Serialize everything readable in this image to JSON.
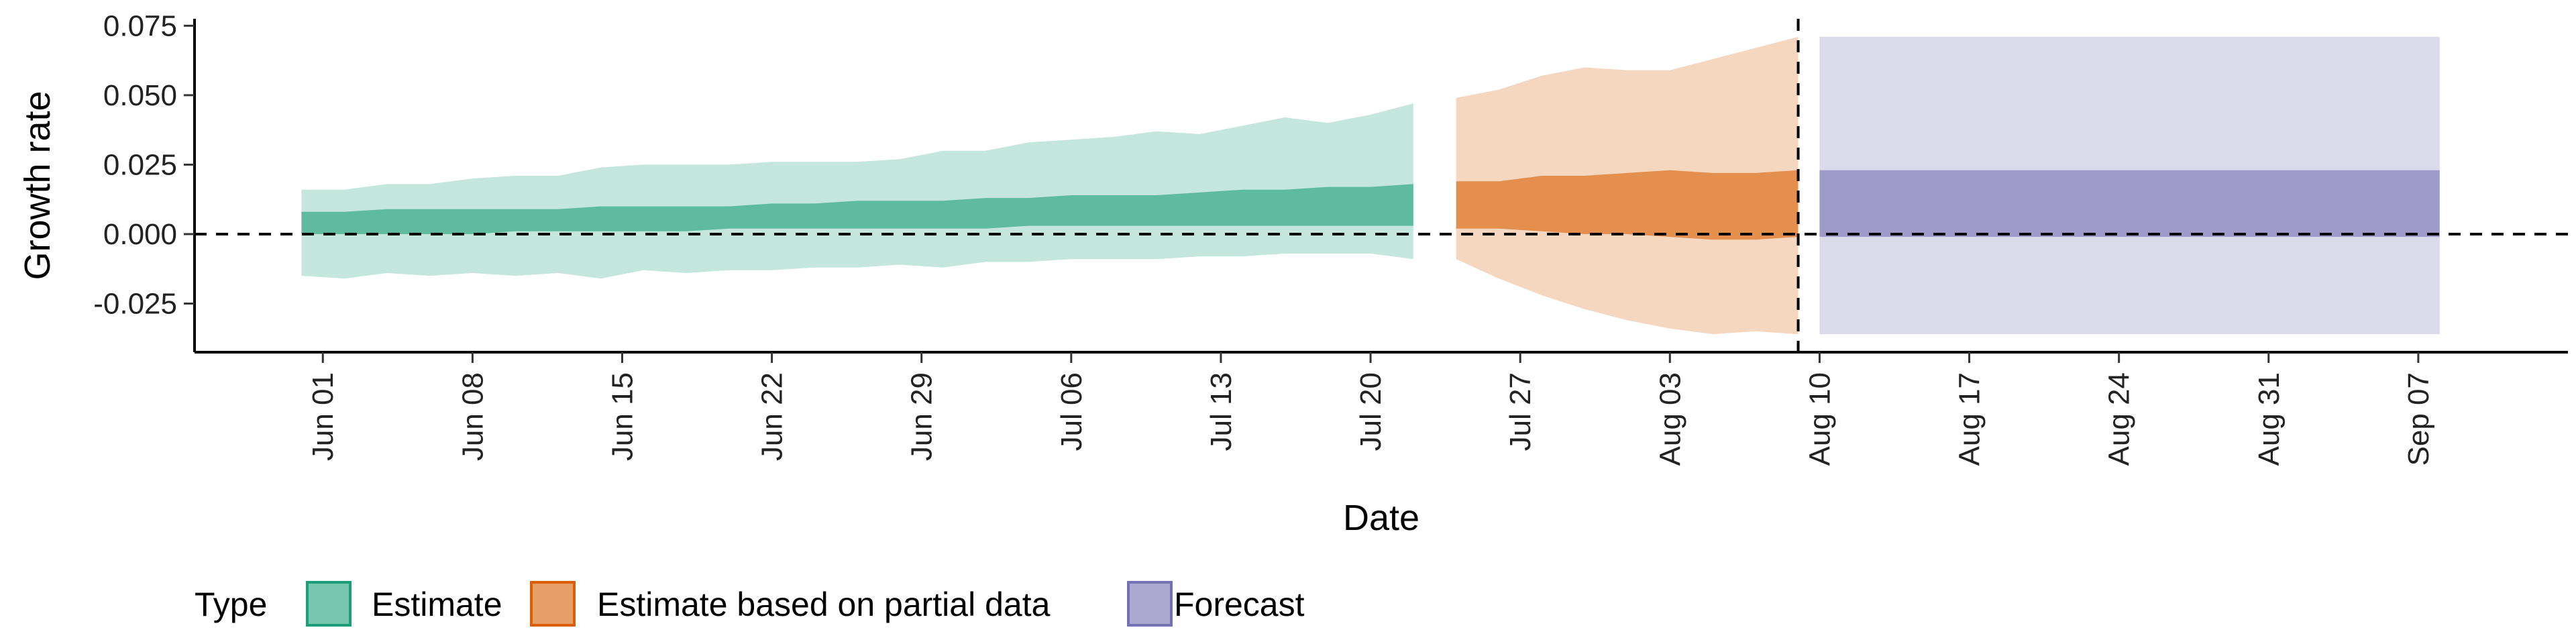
{
  "chart_data": {
    "type": "area",
    "xlabel": "Date",
    "ylabel": "Growth rate",
    "x_axis_type": "date",
    "xlim": [
      "2021-05-26",
      "2021-09-14"
    ],
    "ylim": [
      -0.0425,
      0.0775
    ],
    "x_ticks": [
      {
        "date": "2021-06-01",
        "label": "Jun 01"
      },
      {
        "date": "2021-06-08",
        "label": "Jun 08"
      },
      {
        "date": "2021-06-15",
        "label": "Jun 15"
      },
      {
        "date": "2021-06-22",
        "label": "Jun 22"
      },
      {
        "date": "2021-06-29",
        "label": "Jun 29"
      },
      {
        "date": "2021-07-06",
        "label": "Jul 06"
      },
      {
        "date": "2021-07-13",
        "label": "Jul 13"
      },
      {
        "date": "2021-07-20",
        "label": "Jul 20"
      },
      {
        "date": "2021-07-27",
        "label": "Jul 27"
      },
      {
        "date": "2021-08-03",
        "label": "Aug 03"
      },
      {
        "date": "2021-08-10",
        "label": "Aug 10"
      },
      {
        "date": "2021-08-17",
        "label": "Aug 17"
      },
      {
        "date": "2021-08-24",
        "label": "Aug 24"
      },
      {
        "date": "2021-08-31",
        "label": "Aug 31"
      },
      {
        "date": "2021-09-07",
        "label": "Sep 07"
      }
    ],
    "y_ticks": [
      {
        "value": 0.075,
        "label": "0.075"
      },
      {
        "value": 0.05,
        "label": "0.050"
      },
      {
        "value": 0.025,
        "label": "0.025"
      },
      {
        "value": 0.0,
        "label": "0.000"
      },
      {
        "value": -0.025,
        "label": "-0.025"
      }
    ],
    "reference_lines": {
      "horizontal_y": 0.0,
      "vertical_date": "2021-08-09"
    },
    "grid": false,
    "legend": {
      "title": "Type",
      "position": "bottom-left"
    },
    "series": [
      {
        "name": "Estimate",
        "color": "#1b9e77",
        "x": [
          "2021-05-31",
          "2021-06-02",
          "2021-06-04",
          "2021-06-06",
          "2021-06-08",
          "2021-06-10",
          "2021-06-12",
          "2021-06-14",
          "2021-06-16",
          "2021-06-18",
          "2021-06-20",
          "2021-06-22",
          "2021-06-24",
          "2021-06-26",
          "2021-06-28",
          "2021-06-30",
          "2021-07-02",
          "2021-07-04",
          "2021-07-06",
          "2021-07-08",
          "2021-07-10",
          "2021-07-12",
          "2021-07-14",
          "2021-07-16",
          "2021-07-18",
          "2021-07-20",
          "2021-07-22"
        ],
        "lower_90": [
          -0.015,
          -0.016,
          -0.014,
          -0.015,
          -0.014,
          -0.015,
          -0.014,
          -0.016,
          -0.013,
          -0.014,
          -0.013,
          -0.013,
          -0.012,
          -0.012,
          -0.011,
          -0.012,
          -0.01,
          -0.01,
          -0.009,
          -0.009,
          -0.009,
          -0.008,
          -0.008,
          -0.007,
          -0.007,
          -0.007,
          -0.009
        ],
        "upper_90": [
          0.016,
          0.016,
          0.018,
          0.018,
          0.02,
          0.021,
          0.021,
          0.024,
          0.025,
          0.025,
          0.025,
          0.026,
          0.026,
          0.026,
          0.027,
          0.03,
          0.03,
          0.033,
          0.034,
          0.035,
          0.037,
          0.036,
          0.039,
          0.042,
          0.04,
          0.043,
          0.047
        ],
        "lower_50": [
          0.0,
          0.0,
          0.0,
          0.0,
          0.0,
          0.001,
          0.001,
          0.001,
          0.001,
          0.001,
          0.002,
          0.002,
          0.002,
          0.002,
          0.002,
          0.002,
          0.002,
          0.003,
          0.003,
          0.003,
          0.003,
          0.003,
          0.003,
          0.003,
          0.003,
          0.003,
          0.003
        ],
        "upper_50": [
          0.008,
          0.008,
          0.009,
          0.009,
          0.009,
          0.009,
          0.009,
          0.01,
          0.01,
          0.01,
          0.01,
          0.011,
          0.011,
          0.012,
          0.012,
          0.012,
          0.013,
          0.013,
          0.014,
          0.014,
          0.014,
          0.015,
          0.016,
          0.016,
          0.017,
          0.017,
          0.018
        ]
      },
      {
        "name": "Estimate based on partial data",
        "color": "#d95f02",
        "x": [
          "2021-07-24",
          "2021-07-26",
          "2021-07-28",
          "2021-07-30",
          "2021-08-01",
          "2021-08-03",
          "2021-08-05",
          "2021-08-07",
          "2021-08-09"
        ],
        "lower_90": [
          -0.009,
          -0.016,
          -0.022,
          -0.027,
          -0.031,
          -0.034,
          -0.036,
          -0.035,
          -0.036
        ],
        "upper_90": [
          0.049,
          0.052,
          0.057,
          0.06,
          0.059,
          0.059,
          0.063,
          0.067,
          0.071
        ],
        "lower_50": [
          0.002,
          0.002,
          0.001,
          0.0,
          0.0,
          -0.001,
          -0.002,
          -0.002,
          -0.001
        ],
        "upper_50": [
          0.019,
          0.019,
          0.021,
          0.021,
          0.022,
          0.023,
          0.022,
          0.022,
          0.023
        ]
      },
      {
        "name": "Forecast",
        "color": "#7570b3",
        "x": [
          "2021-08-10",
          "2021-09-08"
        ],
        "lower_90": [
          -0.036,
          -0.036
        ],
        "upper_90": [
          0.071,
          0.071
        ],
        "lower_50": [
          -0.001,
          -0.001
        ],
        "upper_50": [
          0.023,
          0.023
        ]
      }
    ]
  }
}
